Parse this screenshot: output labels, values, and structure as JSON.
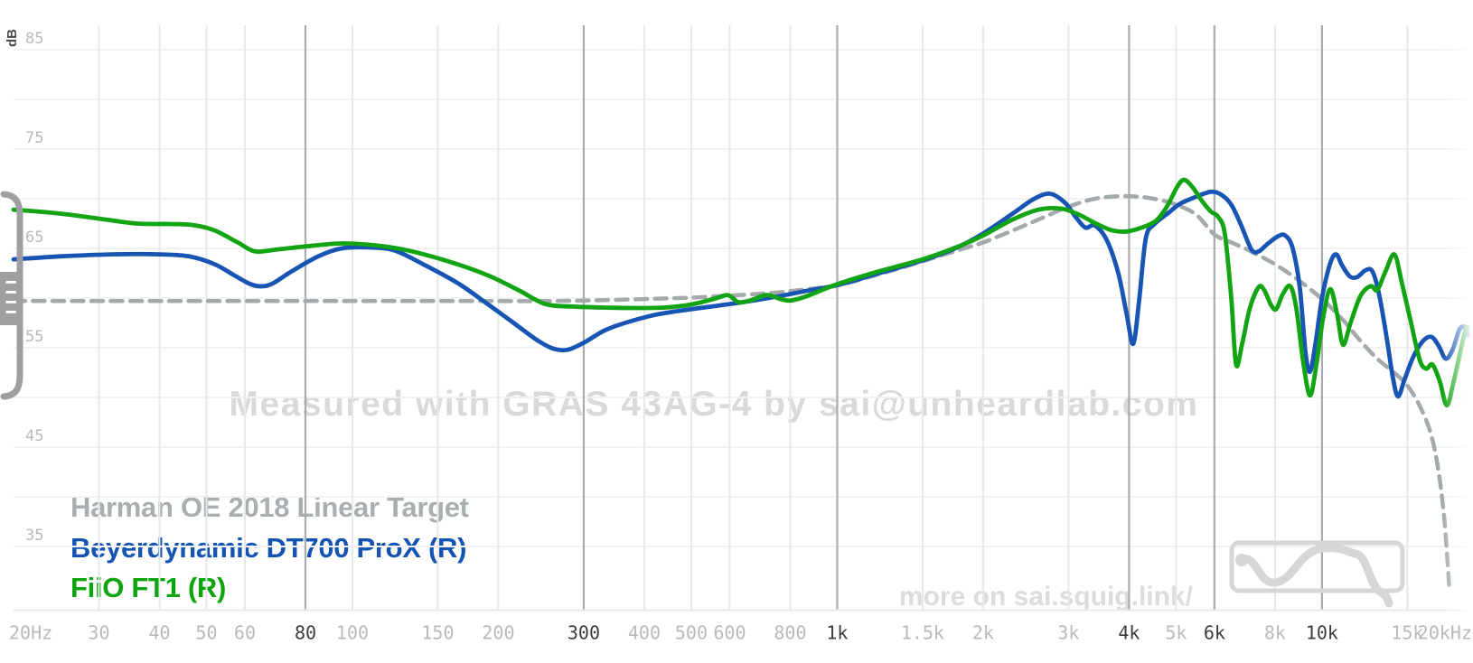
{
  "chart": {
    "watermark": "Measured with GRAS 43AG-4 by sai@unheardlab.com",
    "promo_text": "more on sai.squig.link/",
    "watermark_color": "#d7d9da",
    "promo_color": "#dadcdd",
    "logo_color": "#d4d6d7",
    "handle_color": "#9d9fa1",
    "legend": [
      {
        "label": "Harman OE 2018 Linear Target",
        "color": "#a9aeb1"
      },
      {
        "label": "Beyerdynamic DT700 ProX (R)",
        "color": "#1253b4"
      },
      {
        "label": "FiiO FT1 (R)",
        "color": "#0da50d"
      }
    ]
  },
  "chart_data": {
    "type": "line",
    "ylabel": "dB",
    "x_scale": "log",
    "xlim": [
      20,
      20000
    ],
    "ylim": [
      30,
      87
    ],
    "grid": true,
    "colors": {
      "grid_minor": "#e7e8e9",
      "grid_major": "#a9acae",
      "grid_horizontal": "#f2f2f3",
      "axis_line": "#e8e9ea",
      "tick_label_minor": "#b7babc",
      "tick_label_major": "#3a3d40",
      "unit_label": "#47494b"
    },
    "x_ticks": [
      {
        "f": 20,
        "label": "20Hz",
        "major": false
      },
      {
        "f": 30,
        "label": "30",
        "major": false
      },
      {
        "f": 40,
        "label": "40",
        "major": false
      },
      {
        "f": 50,
        "label": "50",
        "major": false
      },
      {
        "f": 60,
        "label": "60",
        "major": false
      },
      {
        "f": 80,
        "label": "80",
        "major": true
      },
      {
        "f": 100,
        "label": "100",
        "major": false
      },
      {
        "f": 150,
        "label": "150",
        "major": false
      },
      {
        "f": 200,
        "label": "200",
        "major": false
      },
      {
        "f": 300,
        "label": "300",
        "major": true
      },
      {
        "f": 400,
        "label": "400",
        "major": false
      },
      {
        "f": 500,
        "label": "500",
        "major": false
      },
      {
        "f": 600,
        "label": "600",
        "major": false
      },
      {
        "f": 800,
        "label": "800",
        "major": false
      },
      {
        "f": 1000,
        "label": "1k",
        "major": true
      },
      {
        "f": 1500,
        "label": "1.5k",
        "major": false
      },
      {
        "f": 2000,
        "label": "2k",
        "major": false
      },
      {
        "f": 3000,
        "label": "3k",
        "major": false
      },
      {
        "f": 4000,
        "label": "4k",
        "major": true
      },
      {
        "f": 5000,
        "label": "5k",
        "major": false
      },
      {
        "f": 6000,
        "label": "6k",
        "major": true
      },
      {
        "f": 8000,
        "label": "8k",
        "major": false
      },
      {
        "f": 10000,
        "label": "10k",
        "major": true
      },
      {
        "f": 15000,
        "label": "15k",
        "major": false
      },
      {
        "f": 20000,
        "label": "20kHz",
        "major": false
      }
    ],
    "y_ticks": [
      {
        "db": 85,
        "label": "85"
      },
      {
        "db": 75,
        "label": "75"
      },
      {
        "db": 65,
        "label": "65"
      },
      {
        "db": 55,
        "label": "55"
      },
      {
        "db": 45,
        "label": "45"
      },
      {
        "db": 35,
        "label": "35"
      }
    ],
    "y_gridlines": [
      85,
      80,
      75,
      70,
      65,
      60,
      55,
      50,
      45,
      40,
      35
    ],
    "series": [
      {
        "name": "Harman OE 2018 Linear Target",
        "color": "#a4a9ac",
        "style": "dashed",
        "points": [
          [
            20,
            59.7
          ],
          [
            50,
            59.7
          ],
          [
            100,
            59.7
          ],
          [
            150,
            59.7
          ],
          [
            200,
            59.7
          ],
          [
            250,
            59.7
          ],
          [
            300,
            59.75
          ],
          [
            400,
            59.9
          ],
          [
            500,
            60.05
          ],
          [
            600,
            60.25
          ],
          [
            700,
            60.45
          ],
          [
            800,
            60.7
          ],
          [
            1000,
            61.3
          ],
          [
            1200,
            62.3
          ],
          [
            1500,
            63.7
          ],
          [
            1800,
            64.9
          ],
          [
            2000,
            65.6
          ],
          [
            2300,
            66.8
          ],
          [
            2600,
            67.9
          ],
          [
            3000,
            69.2
          ],
          [
            3400,
            70.0
          ],
          [
            3800,
            70.25
          ],
          [
            4200,
            70.2
          ],
          [
            4600,
            69.9
          ],
          [
            5000,
            69.4
          ],
          [
            5500,
            68.4
          ],
          [
            6000,
            66.4
          ],
          [
            6500,
            65.6
          ],
          [
            7000,
            64.9
          ],
          [
            8000,
            63.4
          ],
          [
            9000,
            61.7
          ],
          [
            10000,
            59.9
          ],
          [
            11000,
            57.9
          ],
          [
            12000,
            55.7
          ],
          [
            13000,
            53.9
          ],
          [
            14000,
            52.6
          ],
          [
            15000,
            51.2
          ],
          [
            16000,
            48.9
          ],
          [
            16800,
            46.2
          ],
          [
            17400,
            42.5
          ],
          [
            17900,
            37.5
          ],
          [
            18300,
            31.0
          ]
        ]
      },
      {
        "name": "Beyerdynamic DT700 ProX (R)",
        "color": "#1754b4",
        "style": "solid",
        "points": [
          [
            20,
            63.9
          ],
          [
            25,
            64.2
          ],
          [
            32,
            64.4
          ],
          [
            40,
            64.4
          ],
          [
            46,
            64.2
          ],
          [
            52,
            63.4
          ],
          [
            57,
            62.3
          ],
          [
            61,
            61.5
          ],
          [
            64,
            61.2
          ],
          [
            68,
            61.4
          ],
          [
            75,
            62.7
          ],
          [
            85,
            64.2
          ],
          [
            95,
            65.0
          ],
          [
            108,
            65.1
          ],
          [
            122,
            64.8
          ],
          [
            140,
            63.4
          ],
          [
            165,
            61.5
          ],
          [
            190,
            59.4
          ],
          [
            215,
            57.5
          ],
          [
            240,
            55.8
          ],
          [
            260,
            54.9
          ],
          [
            278,
            54.8
          ],
          [
            300,
            55.5
          ],
          [
            330,
            56.7
          ],
          [
            365,
            57.5
          ],
          [
            420,
            58.3
          ],
          [
            470,
            58.7
          ],
          [
            540,
            59.1
          ],
          [
            620,
            59.5
          ],
          [
            700,
            59.9
          ],
          [
            780,
            60.3
          ],
          [
            880,
            60.8
          ],
          [
            1000,
            61.3
          ],
          [
            1200,
            62.4
          ],
          [
            1500,
            63.8
          ],
          [
            1750,
            65.0
          ],
          [
            2000,
            66.5
          ],
          [
            2300,
            68.5
          ],
          [
            2550,
            70.0
          ],
          [
            2750,
            70.5
          ],
          [
            2950,
            69.6
          ],
          [
            3100,
            68.2
          ],
          [
            3250,
            67.1
          ],
          [
            3400,
            67.3
          ],
          [
            3600,
            65.8
          ],
          [
            3800,
            62.5
          ],
          [
            3950,
            58.5
          ],
          [
            4080,
            55.4
          ],
          [
            4200,
            60.0
          ],
          [
            4330,
            66.0
          ],
          [
            4500,
            67.4
          ],
          [
            4800,
            68.5
          ],
          [
            5100,
            69.5
          ],
          [
            5500,
            70.2
          ],
          [
            5900,
            70.7
          ],
          [
            6200,
            70.4
          ],
          [
            6500,
            69.4
          ],
          [
            6800,
            67.4
          ],
          [
            7150,
            64.9
          ],
          [
            7400,
            64.7
          ],
          [
            7700,
            65.4
          ],
          [
            8100,
            66.2
          ],
          [
            8400,
            66.3
          ],
          [
            8700,
            65.0
          ],
          [
            9000,
            61.0
          ],
          [
            9250,
            54.5
          ],
          [
            9450,
            52.6
          ],
          [
            9700,
            55.5
          ],
          [
            10000,
            60.0
          ],
          [
            10400,
            63.5
          ],
          [
            10700,
            64.4
          ],
          [
            11000,
            63.3
          ],
          [
            11400,
            62.2
          ],
          [
            11800,
            62.1
          ],
          [
            12300,
            62.8
          ],
          [
            12700,
            62.7
          ],
          [
            13100,
            60.5
          ],
          [
            13600,
            56.0
          ],
          [
            14000,
            52.0
          ],
          [
            14350,
            50.1
          ],
          [
            14800,
            51.8
          ],
          [
            15400,
            54.0
          ],
          [
            16100,
            55.6
          ],
          [
            16800,
            56.1
          ],
          [
            17400,
            55.2
          ],
          [
            18000,
            53.9
          ],
          [
            18600,
            54.8
          ],
          [
            19200,
            56.8
          ],
          [
            19700,
            57.1
          ],
          [
            20000,
            56.3
          ]
        ]
      },
      {
        "name": "FiiO FT1 (R)",
        "color": "#12a412",
        "style": "solid",
        "points": [
          [
            20,
            68.9
          ],
          [
            25,
            68.5
          ],
          [
            31,
            67.9
          ],
          [
            36,
            67.5
          ],
          [
            42,
            67.45
          ],
          [
            47,
            67.35
          ],
          [
            52,
            66.8
          ],
          [
            58,
            65.6
          ],
          [
            63,
            64.7
          ],
          [
            70,
            64.9
          ],
          [
            80,
            65.2
          ],
          [
            95,
            65.5
          ],
          [
            112,
            65.3
          ],
          [
            130,
            64.8
          ],
          [
            160,
            63.6
          ],
          [
            190,
            62.3
          ],
          [
            220,
            60.8
          ],
          [
            250,
            59.4
          ],
          [
            285,
            59.15
          ],
          [
            330,
            59.05
          ],
          [
            380,
            59.0
          ],
          [
            440,
            59.05
          ],
          [
            500,
            59.35
          ],
          [
            560,
            59.95
          ],
          [
            595,
            60.3
          ],
          [
            625,
            59.6
          ],
          [
            660,
            59.75
          ],
          [
            715,
            60.3
          ],
          [
            765,
            59.9
          ],
          [
            800,
            59.75
          ],
          [
            860,
            60.15
          ],
          [
            1000,
            61.4
          ],
          [
            1200,
            62.6
          ],
          [
            1500,
            63.9
          ],
          [
            1800,
            65.3
          ],
          [
            2000,
            66.3
          ],
          [
            2300,
            67.9
          ],
          [
            2600,
            68.9
          ],
          [
            2900,
            69.0
          ],
          [
            3150,
            68.4
          ],
          [
            3450,
            67.4
          ],
          [
            3700,
            66.8
          ],
          [
            3950,
            66.7
          ],
          [
            4250,
            67.1
          ],
          [
            4550,
            67.8
          ],
          [
            4800,
            69.3
          ],
          [
            5000,
            71.0
          ],
          [
            5180,
            71.9
          ],
          [
            5400,
            71.2
          ],
          [
            5650,
            69.8
          ],
          [
            5900,
            68.7
          ],
          [
            6100,
            68.2
          ],
          [
            6300,
            66.5
          ],
          [
            6500,
            60.0
          ],
          [
            6650,
            53.3
          ],
          [
            6850,
            55.5
          ],
          [
            7100,
            59.0
          ],
          [
            7400,
            61.1
          ],
          [
            7600,
            60.8
          ],
          [
            7850,
            59.3
          ],
          [
            8050,
            58.9
          ],
          [
            8300,
            60.4
          ],
          [
            8600,
            61.2
          ],
          [
            8850,
            59.0
          ],
          [
            9150,
            53.5
          ],
          [
            9450,
            50.2
          ],
          [
            9750,
            53.5
          ],
          [
            10050,
            58.0
          ],
          [
            10400,
            60.9
          ],
          [
            10750,
            58.3
          ],
          [
            11050,
            55.3
          ],
          [
            11450,
            57.5
          ],
          [
            12000,
            60.2
          ],
          [
            12600,
            61.2
          ],
          [
            13000,
            60.8
          ],
          [
            13500,
            62.6
          ],
          [
            14100,
            64.4
          ],
          [
            14600,
            61.6
          ],
          [
            15200,
            57.9
          ],
          [
            15900,
            53.8
          ],
          [
            16400,
            52.9
          ],
          [
            16900,
            53.3
          ],
          [
            17500,
            51.6
          ],
          [
            18100,
            49.2
          ],
          [
            18700,
            51.6
          ],
          [
            19300,
            54.6
          ],
          [
            19800,
            56.9
          ],
          [
            20000,
            57.0
          ]
        ]
      }
    ]
  }
}
